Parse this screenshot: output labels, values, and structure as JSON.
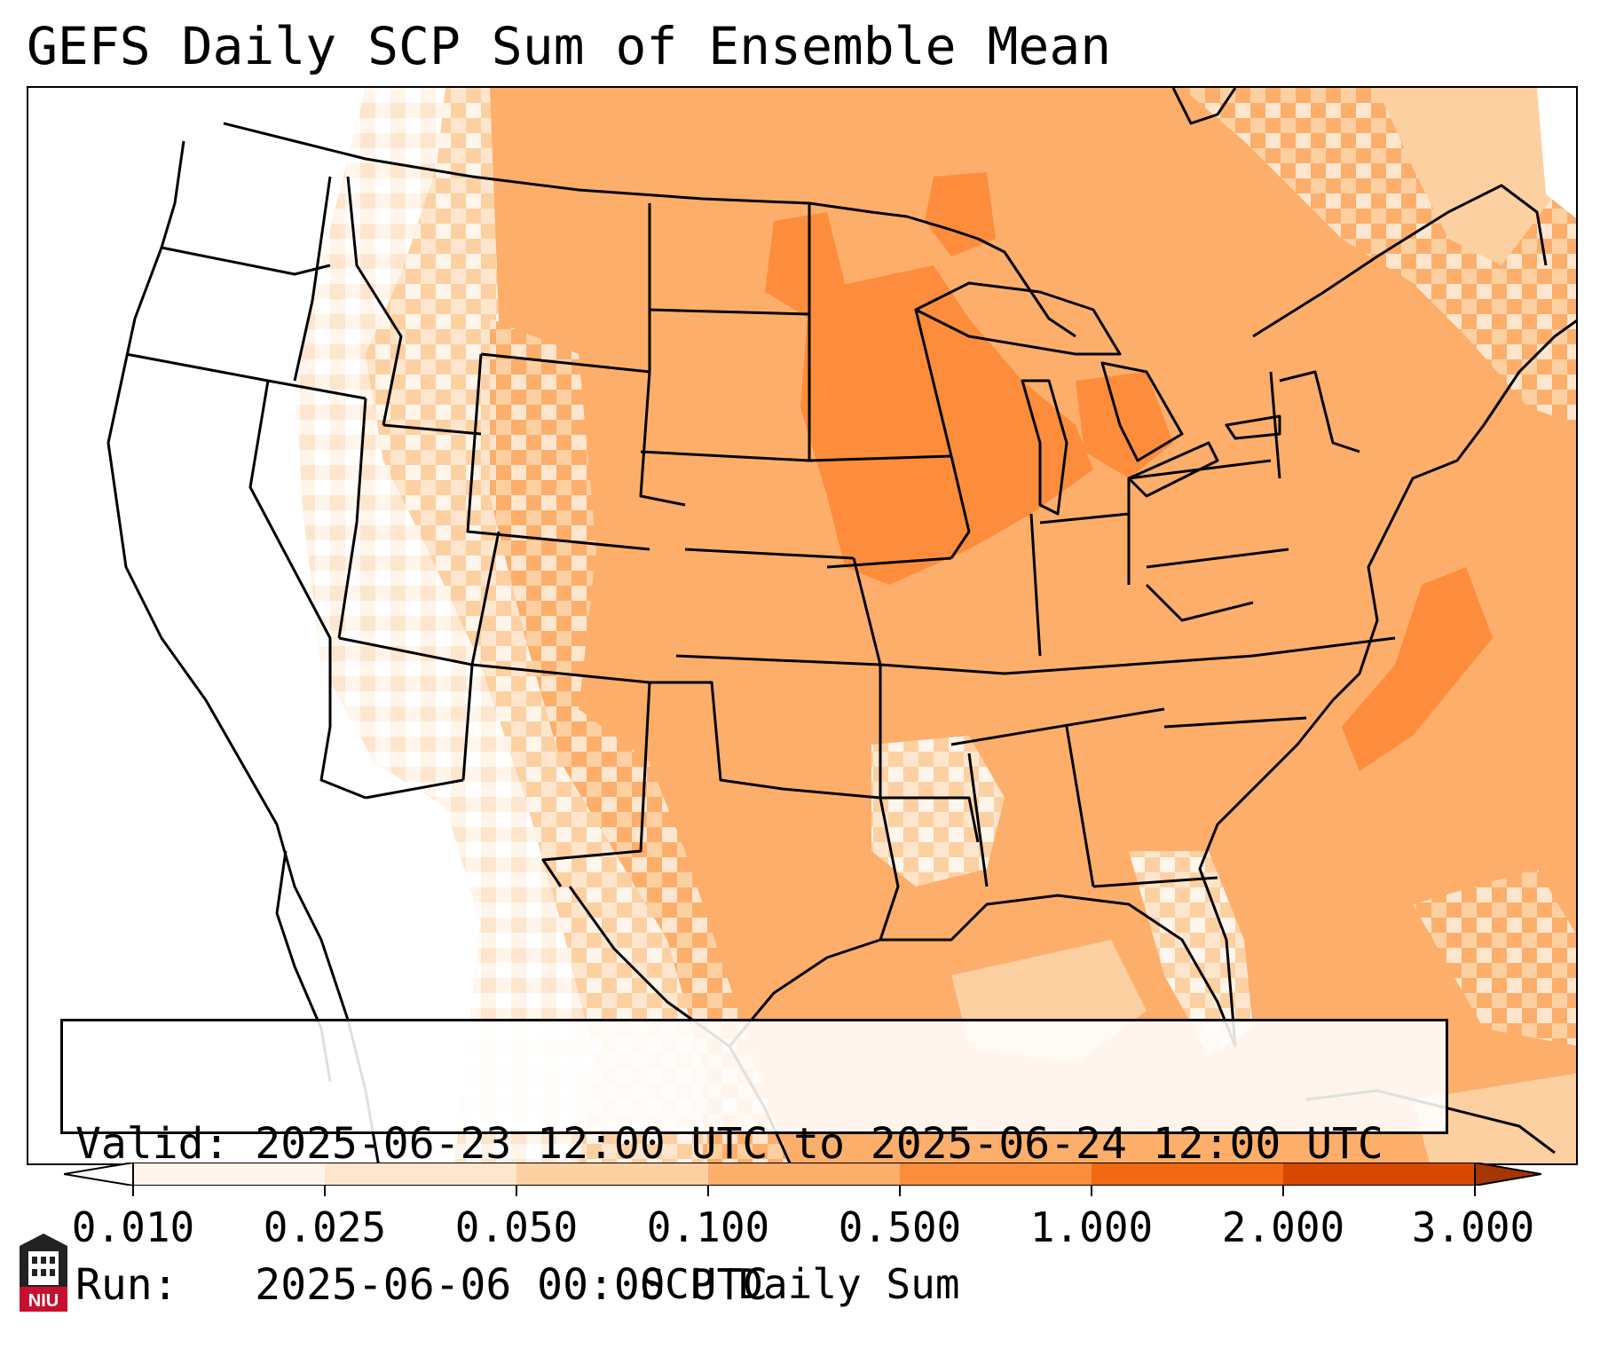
{
  "title": "GEFS Daily SCP Sum of Ensemble Mean",
  "info_box": {
    "valid_label": "Valid:",
    "valid_value": "2025-06-23 12:00 UTC to 2025-06-24 12:00 UTC",
    "run_label": "Run:",
    "run_value": "2025-06-06 00:00 UTC"
  },
  "colorbar": {
    "label": "SCP Daily Sum",
    "ticks": [
      "0.010",
      "0.025",
      "0.050",
      "0.100",
      "0.500",
      "1.000",
      "2.000",
      "3.000"
    ],
    "colors": [
      "#fff5eb",
      "#fee6ce",
      "#fdd0a2",
      "#fdae6b",
      "#fd8d3c",
      "#f16913",
      "#d94801"
    ],
    "extend": "both"
  },
  "map": {
    "region": "Contiguous United States",
    "fill_colors": {
      "below_min": "#ffffff",
      "very_low": "#fff5eb",
      "low": "#fee6ce",
      "light": "#fdd0a2",
      "moderate": "#fdae6b",
      "high": "#fd8d3c"
    },
    "border_color": "#000000"
  },
  "logo": {
    "text": "NIU",
    "color": "#c8102e"
  }
}
